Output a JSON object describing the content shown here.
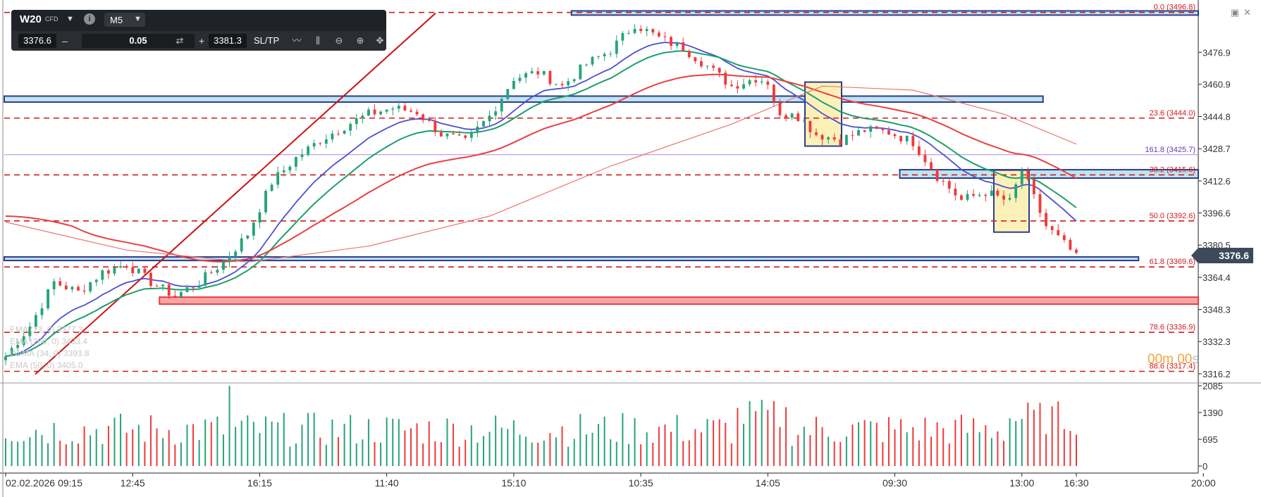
{
  "toolbar": {
    "symbol": "W20",
    "symbol_type": "CFD",
    "timeframe": "M5",
    "bid": "3376.6",
    "ask": "3381.3",
    "quantity": "0.05",
    "minus": "–",
    "plus": "+",
    "sltp": "SL/TP"
  },
  "timer": {
    "main": "00m 00",
    "suffix": "s"
  },
  "current_price": "3376.6",
  "colors": {
    "bull": "#26a37a",
    "bear": "#ef3b3b",
    "ema_fast": "#4b4fd1",
    "ema_mid": "#1e9e6e",
    "ema_slow": "#e84040",
    "ema_long": "#e97575",
    "fib": "#d11b1b",
    "zone_blue_fill": "#bfe3ef",
    "zone_blue_border": "#2e3c8c",
    "zone_red_fill": "#f4a6a6",
    "box_yellow": "#fbf1b8",
    "ext_line": "#b085e0"
  },
  "legend": [
    "EMA (13, 0) 3377.3",
    "EMA (200, 0) 3433.4",
    "LWMA (34, 0) 3393.8",
    "EMA (50, 0) 3405.0"
  ],
  "chart_data": {
    "type": "candlestick",
    "y_price_ticks": [
      "3476.9",
      "3460.9",
      "3444.8",
      "3428.7",
      "3412.6",
      "3396.6",
      "3380.5",
      "3364.4",
      "3348.3",
      "3332.3",
      "3316.2"
    ],
    "ylim": [
      3313,
      3496
    ],
    "volume_ticks": [
      "2085",
      "1390",
      "695",
      "0"
    ],
    "volume_ylim": [
      0,
      2085
    ],
    "x_ticks": [
      "02.02.2026 09:15",
      "12:45",
      "16:15",
      "11:40",
      "15:10",
      "10:35",
      "14:05",
      "09:30",
      "13:00",
      "16:30",
      "20:00"
    ],
    "fib_levels": [
      {
        "label": "0.0 (3496.8)",
        "value": 3496.8
      },
      {
        "label": "23.6 (3444.0)",
        "value": 3444.0
      },
      {
        "label": "38.2 (3415.6)",
        "value": 3415.6
      },
      {
        "label": "50.0 (3392.6)",
        "value": 3392.6
      },
      {
        "label": "61.8 (3369.6)",
        "value": 3369.6
      },
      {
        "label": "78.6 (3336.9)",
        "value": 3336.9
      },
      {
        "label": "88.6 (3317.4)",
        "value": 3317.4
      }
    ],
    "extension": {
      "label": "161.8 (3425.7)",
      "value": 3425.7
    },
    "zones": [
      {
        "kind": "blue",
        "from": 3452.0,
        "to": 3455.0,
        "x0": 0,
        "x1": 0.87
      },
      {
        "kind": "blue",
        "from": 3495.5,
        "to": 3497.6,
        "x0": 0.475,
        "x1": 1
      },
      {
        "kind": "blue",
        "from": 3414.0,
        "to": 3418.2,
        "x0": 0.75,
        "x1": 1
      },
      {
        "kind": "blue",
        "from": 3372.8,
        "to": 3374.6,
        "x0": 0,
        "x1": 0.95
      },
      {
        "kind": "red",
        "from": 3351.0,
        "to": 3354.5,
        "x0": 0.13,
        "x1": 1
      }
    ],
    "anchors": [
      [
        0,
        3325
      ],
      [
        4,
        3340
      ],
      [
        8,
        3362
      ],
      [
        12,
        3357
      ],
      [
        16,
        3367
      ],
      [
        20,
        3371
      ],
      [
        24,
        3362
      ],
      [
        28,
        3355
      ],
      [
        32,
        3362
      ],
      [
        36,
        3372
      ],
      [
        40,
        3386
      ],
      [
        44,
        3412
      ],
      [
        48,
        3424
      ],
      [
        52,
        3433
      ],
      [
        56,
        3440
      ],
      [
        60,
        3446
      ],
      [
        64,
        3449
      ],
      [
        68,
        3447
      ],
      [
        72,
        3436
      ],
      [
        76,
        3432
      ],
      [
        80,
        3445
      ],
      [
        84,
        3464
      ],
      [
        88,
        3467
      ],
      [
        92,
        3460
      ],
      [
        96,
        3471
      ],
      [
        100,
        3478
      ],
      [
        104,
        3491
      ],
      [
        108,
        3484
      ],
      [
        112,
        3479
      ],
      [
        116,
        3470
      ],
      [
        120,
        3460
      ],
      [
        124,
        3464
      ],
      [
        126,
        3462
      ],
      [
        128,
        3444
      ],
      [
        130,
        3448
      ],
      [
        134,
        3436
      ],
      [
        138,
        3433
      ],
      [
        142,
        3438
      ],
      [
        146,
        3437
      ],
      [
        150,
        3432
      ],
      [
        154,
        3415
      ],
      [
        158,
        3403
      ],
      [
        162,
        3407
      ],
      [
        166,
        3402
      ],
      [
        168,
        3418
      ],
      [
        172,
        3390
      ],
      [
        176,
        3378
      ],
      [
        177,
        3376.6
      ]
    ]
  }
}
